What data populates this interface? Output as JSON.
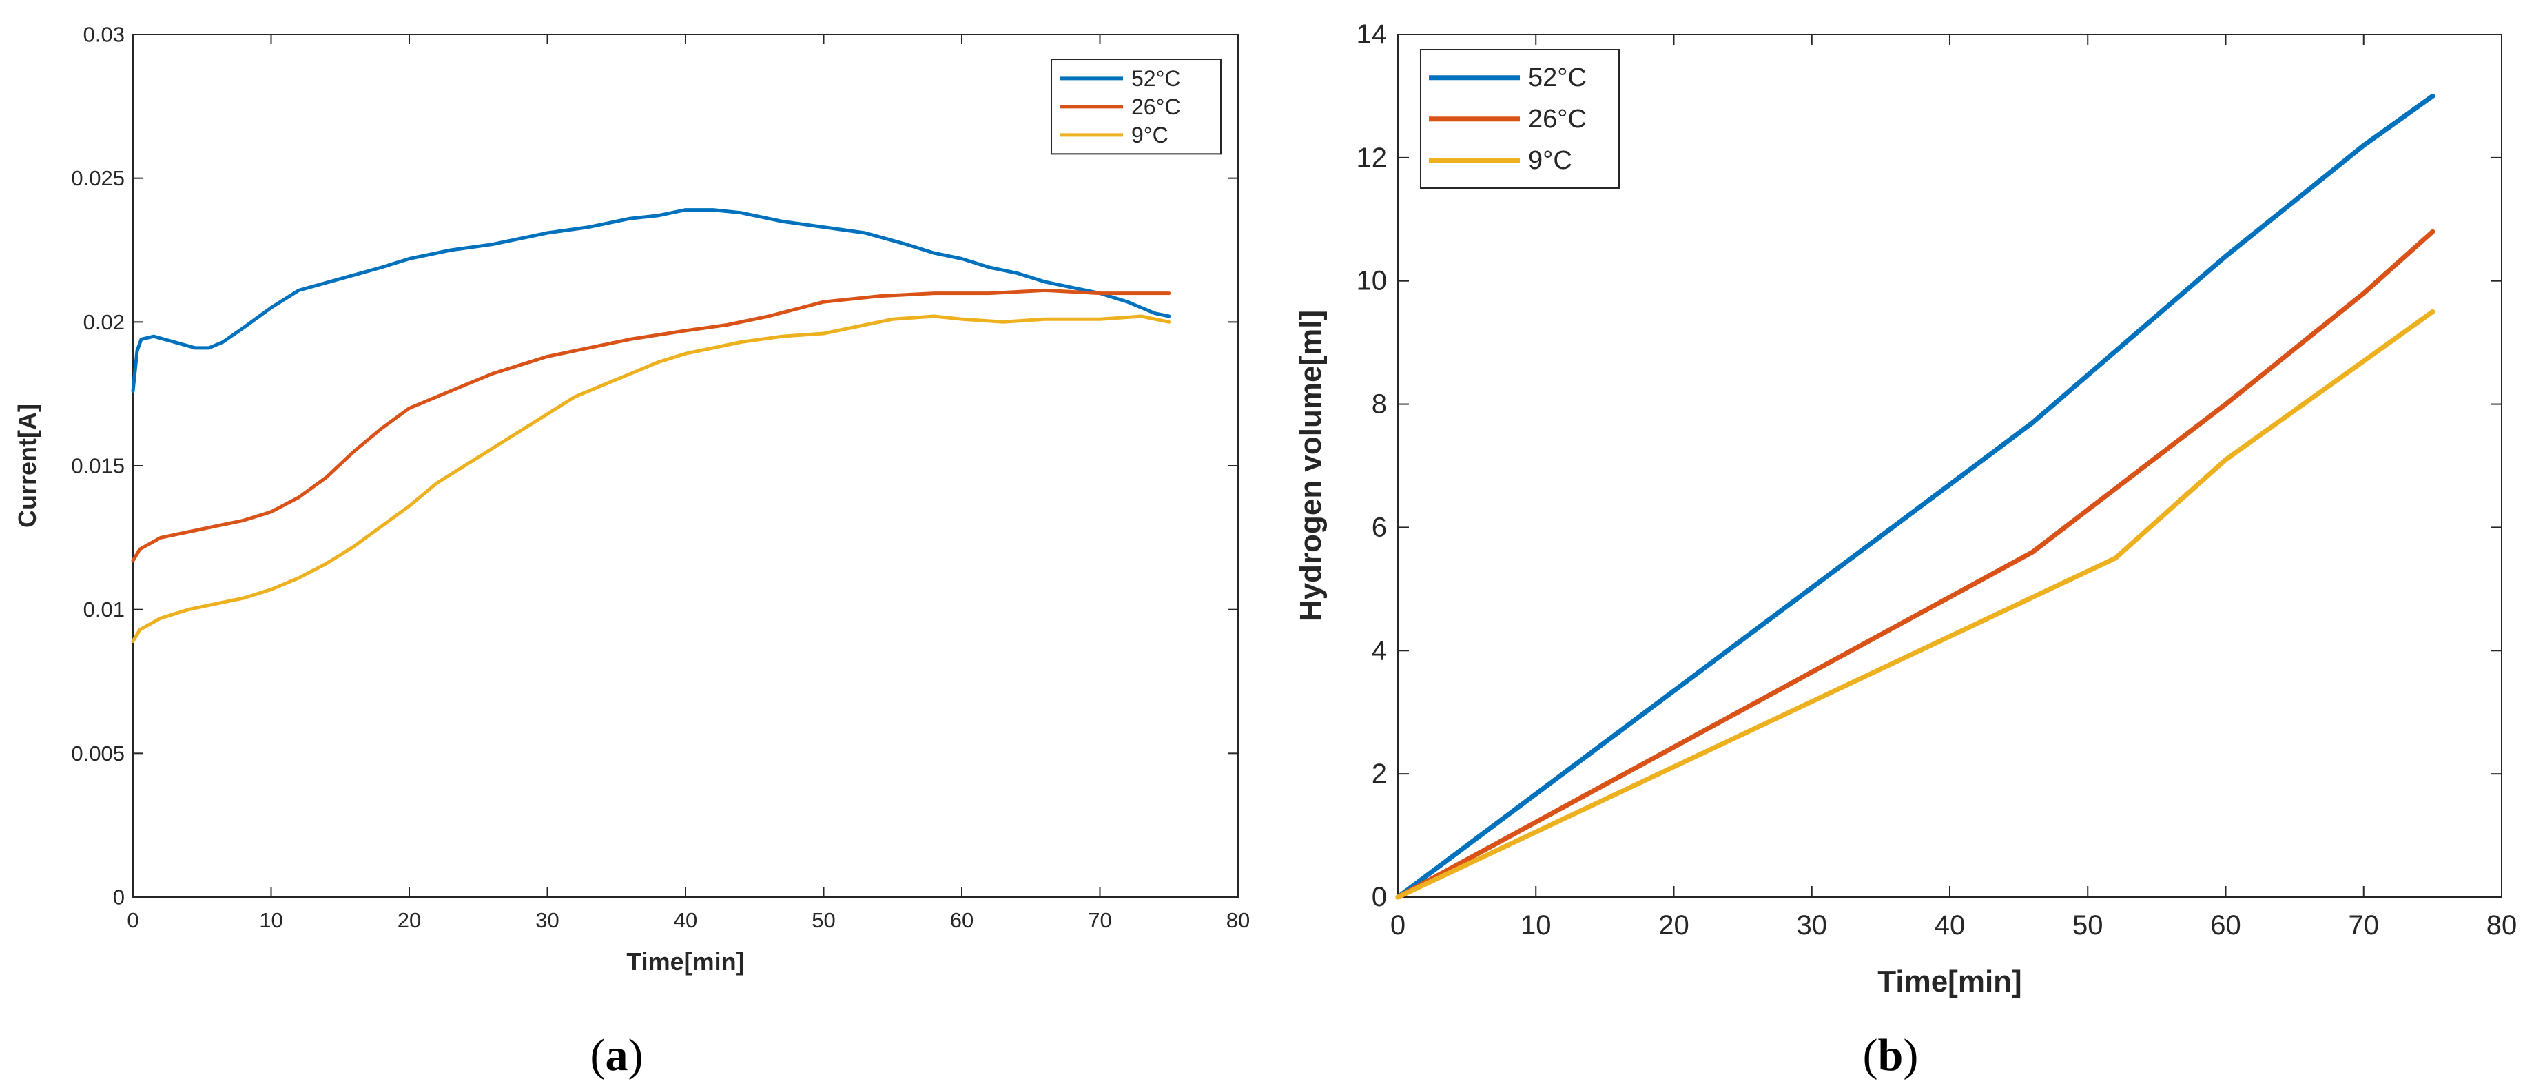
{
  "chart_data": [
    {
      "type": "line",
      "panel_label": "a",
      "xlabel": "Time[min]",
      "ylabel": "Current[A]",
      "xlim": [
        0,
        80
      ],
      "ylim": [
        0,
        0.03
      ],
      "xticks": [
        "0",
        "10",
        "20",
        "30",
        "40",
        "50",
        "60",
        "70",
        "80"
      ],
      "yticks": [
        "0",
        "0.005",
        "0.01",
        "0.015",
        "0.02",
        "0.025",
        "0.03"
      ],
      "grid": false,
      "legend_position": "top-right",
      "series": [
        {
          "name": "52°C",
          "color": "#0072BD",
          "points": [
            [
              0,
              0.0176
            ],
            [
              0.3,
              0.019
            ],
            [
              0.6,
              0.0194
            ],
            [
              1.5,
              0.0195
            ],
            [
              3,
              0.0193
            ],
            [
              4.5,
              0.0191
            ],
            [
              5.5,
              0.0191
            ],
            [
              6.5,
              0.0193
            ],
            [
              8,
              0.0198
            ],
            [
              10,
              0.0205
            ],
            [
              12,
              0.0211
            ],
            [
              15,
              0.0215
            ],
            [
              18,
              0.0219
            ],
            [
              20,
              0.0222
            ],
            [
              23,
              0.0225
            ],
            [
              26,
              0.0227
            ],
            [
              30,
              0.0231
            ],
            [
              33,
              0.0233
            ],
            [
              36,
              0.0236
            ],
            [
              38,
              0.0237
            ],
            [
              40,
              0.0239
            ],
            [
              42,
              0.0239
            ],
            [
              44,
              0.0238
            ],
            [
              47,
              0.0235
            ],
            [
              50,
              0.0233
            ],
            [
              53,
              0.0231
            ],
            [
              56,
              0.0227
            ],
            [
              58,
              0.0224
            ],
            [
              60,
              0.0222
            ],
            [
              62,
              0.0219
            ],
            [
              64,
              0.0217
            ],
            [
              66,
              0.0214
            ],
            [
              68,
              0.0212
            ],
            [
              70,
              0.021
            ],
            [
              72,
              0.0207
            ],
            [
              73,
              0.0205
            ],
            [
              74,
              0.0203
            ],
            [
              75,
              0.0202
            ]
          ]
        },
        {
          "name": "26°C",
          "color": "#D95319",
          "points": [
            [
              0,
              0.0117
            ],
            [
              0.5,
              0.0121
            ],
            [
              2,
              0.0125
            ],
            [
              4,
              0.0127
            ],
            [
              6,
              0.0129
            ],
            [
              8,
              0.0131
            ],
            [
              10,
              0.0134
            ],
            [
              12,
              0.0139
            ],
            [
              14,
              0.0146
            ],
            [
              16,
              0.0155
            ],
            [
              18,
              0.0163
            ],
            [
              20,
              0.017
            ],
            [
              22,
              0.0174
            ],
            [
              24,
              0.0178
            ],
            [
              26,
              0.0182
            ],
            [
              28,
              0.0185
            ],
            [
              30,
              0.0188
            ],
            [
              33,
              0.0191
            ],
            [
              36,
              0.0194
            ],
            [
              40,
              0.0197
            ],
            [
              43,
              0.0199
            ],
            [
              46,
              0.0202
            ],
            [
              50,
              0.0207
            ],
            [
              54,
              0.0209
            ],
            [
              58,
              0.021
            ],
            [
              62,
              0.021
            ],
            [
              66,
              0.0211
            ],
            [
              70,
              0.021
            ],
            [
              75,
              0.021
            ]
          ]
        },
        {
          "name": "9°C",
          "color": "#EDB120",
          "points": [
            [
              0,
              0.0089
            ],
            [
              0.5,
              0.0093
            ],
            [
              2,
              0.0097
            ],
            [
              4,
              0.01
            ],
            [
              6,
              0.0102
            ],
            [
              8,
              0.0104
            ],
            [
              10,
              0.0107
            ],
            [
              12,
              0.0111
            ],
            [
              14,
              0.0116
            ],
            [
              16,
              0.0122
            ],
            [
              18,
              0.0129
            ],
            [
              20,
              0.0136
            ],
            [
              22,
              0.0144
            ],
            [
              25,
              0.0153
            ],
            [
              28,
              0.0162
            ],
            [
              30,
              0.0168
            ],
            [
              32,
              0.0174
            ],
            [
              34,
              0.0178
            ],
            [
              36,
              0.0182
            ],
            [
              38,
              0.0186
            ],
            [
              40,
              0.0189
            ],
            [
              42,
              0.0191
            ],
            [
              44,
              0.0193
            ],
            [
              47,
              0.0195
            ],
            [
              50,
              0.0196
            ],
            [
              53,
              0.0199
            ],
            [
              55,
              0.0201
            ],
            [
              58,
              0.0202
            ],
            [
              60,
              0.0201
            ],
            [
              63,
              0.02
            ],
            [
              66,
              0.0201
            ],
            [
              70,
              0.0201
            ],
            [
              73,
              0.0202
            ],
            [
              75,
              0.02
            ]
          ]
        }
      ]
    },
    {
      "type": "line",
      "panel_label": "b",
      "xlabel": "Time[min]",
      "ylabel": "Hydrogen volume[ml]",
      "xlim": [
        0,
        80
      ],
      "ylim": [
        0,
        14
      ],
      "xticks": [
        "0",
        "10",
        "20",
        "30",
        "40",
        "50",
        "60",
        "70",
        "80"
      ],
      "yticks": [
        "0",
        "2",
        "4",
        "6",
        "8",
        "10",
        "12",
        "14"
      ],
      "grid": false,
      "legend_position": "top-left",
      "series": [
        {
          "name": "52°C",
          "color": "#0072BD",
          "points": [
            [
              0,
              0
            ],
            [
              46,
              7.7
            ],
            [
              60,
              10.4
            ],
            [
              70,
              12.2
            ],
            [
              75,
              13.0
            ]
          ]
        },
        {
          "name": "26°C",
          "color": "#D95319",
          "points": [
            [
              0,
              0
            ],
            [
              46,
              5.6
            ],
            [
              60,
              8.0
            ],
            [
              70,
              9.8
            ],
            [
              75,
              10.8
            ]
          ]
        },
        {
          "name": "9°C",
          "color": "#EDB120",
          "points": [
            [
              0,
              0
            ],
            [
              52,
              5.5
            ],
            [
              60,
              7.1
            ],
            [
              70,
              8.7
            ],
            [
              75,
              9.5
            ]
          ]
        }
      ]
    }
  ]
}
